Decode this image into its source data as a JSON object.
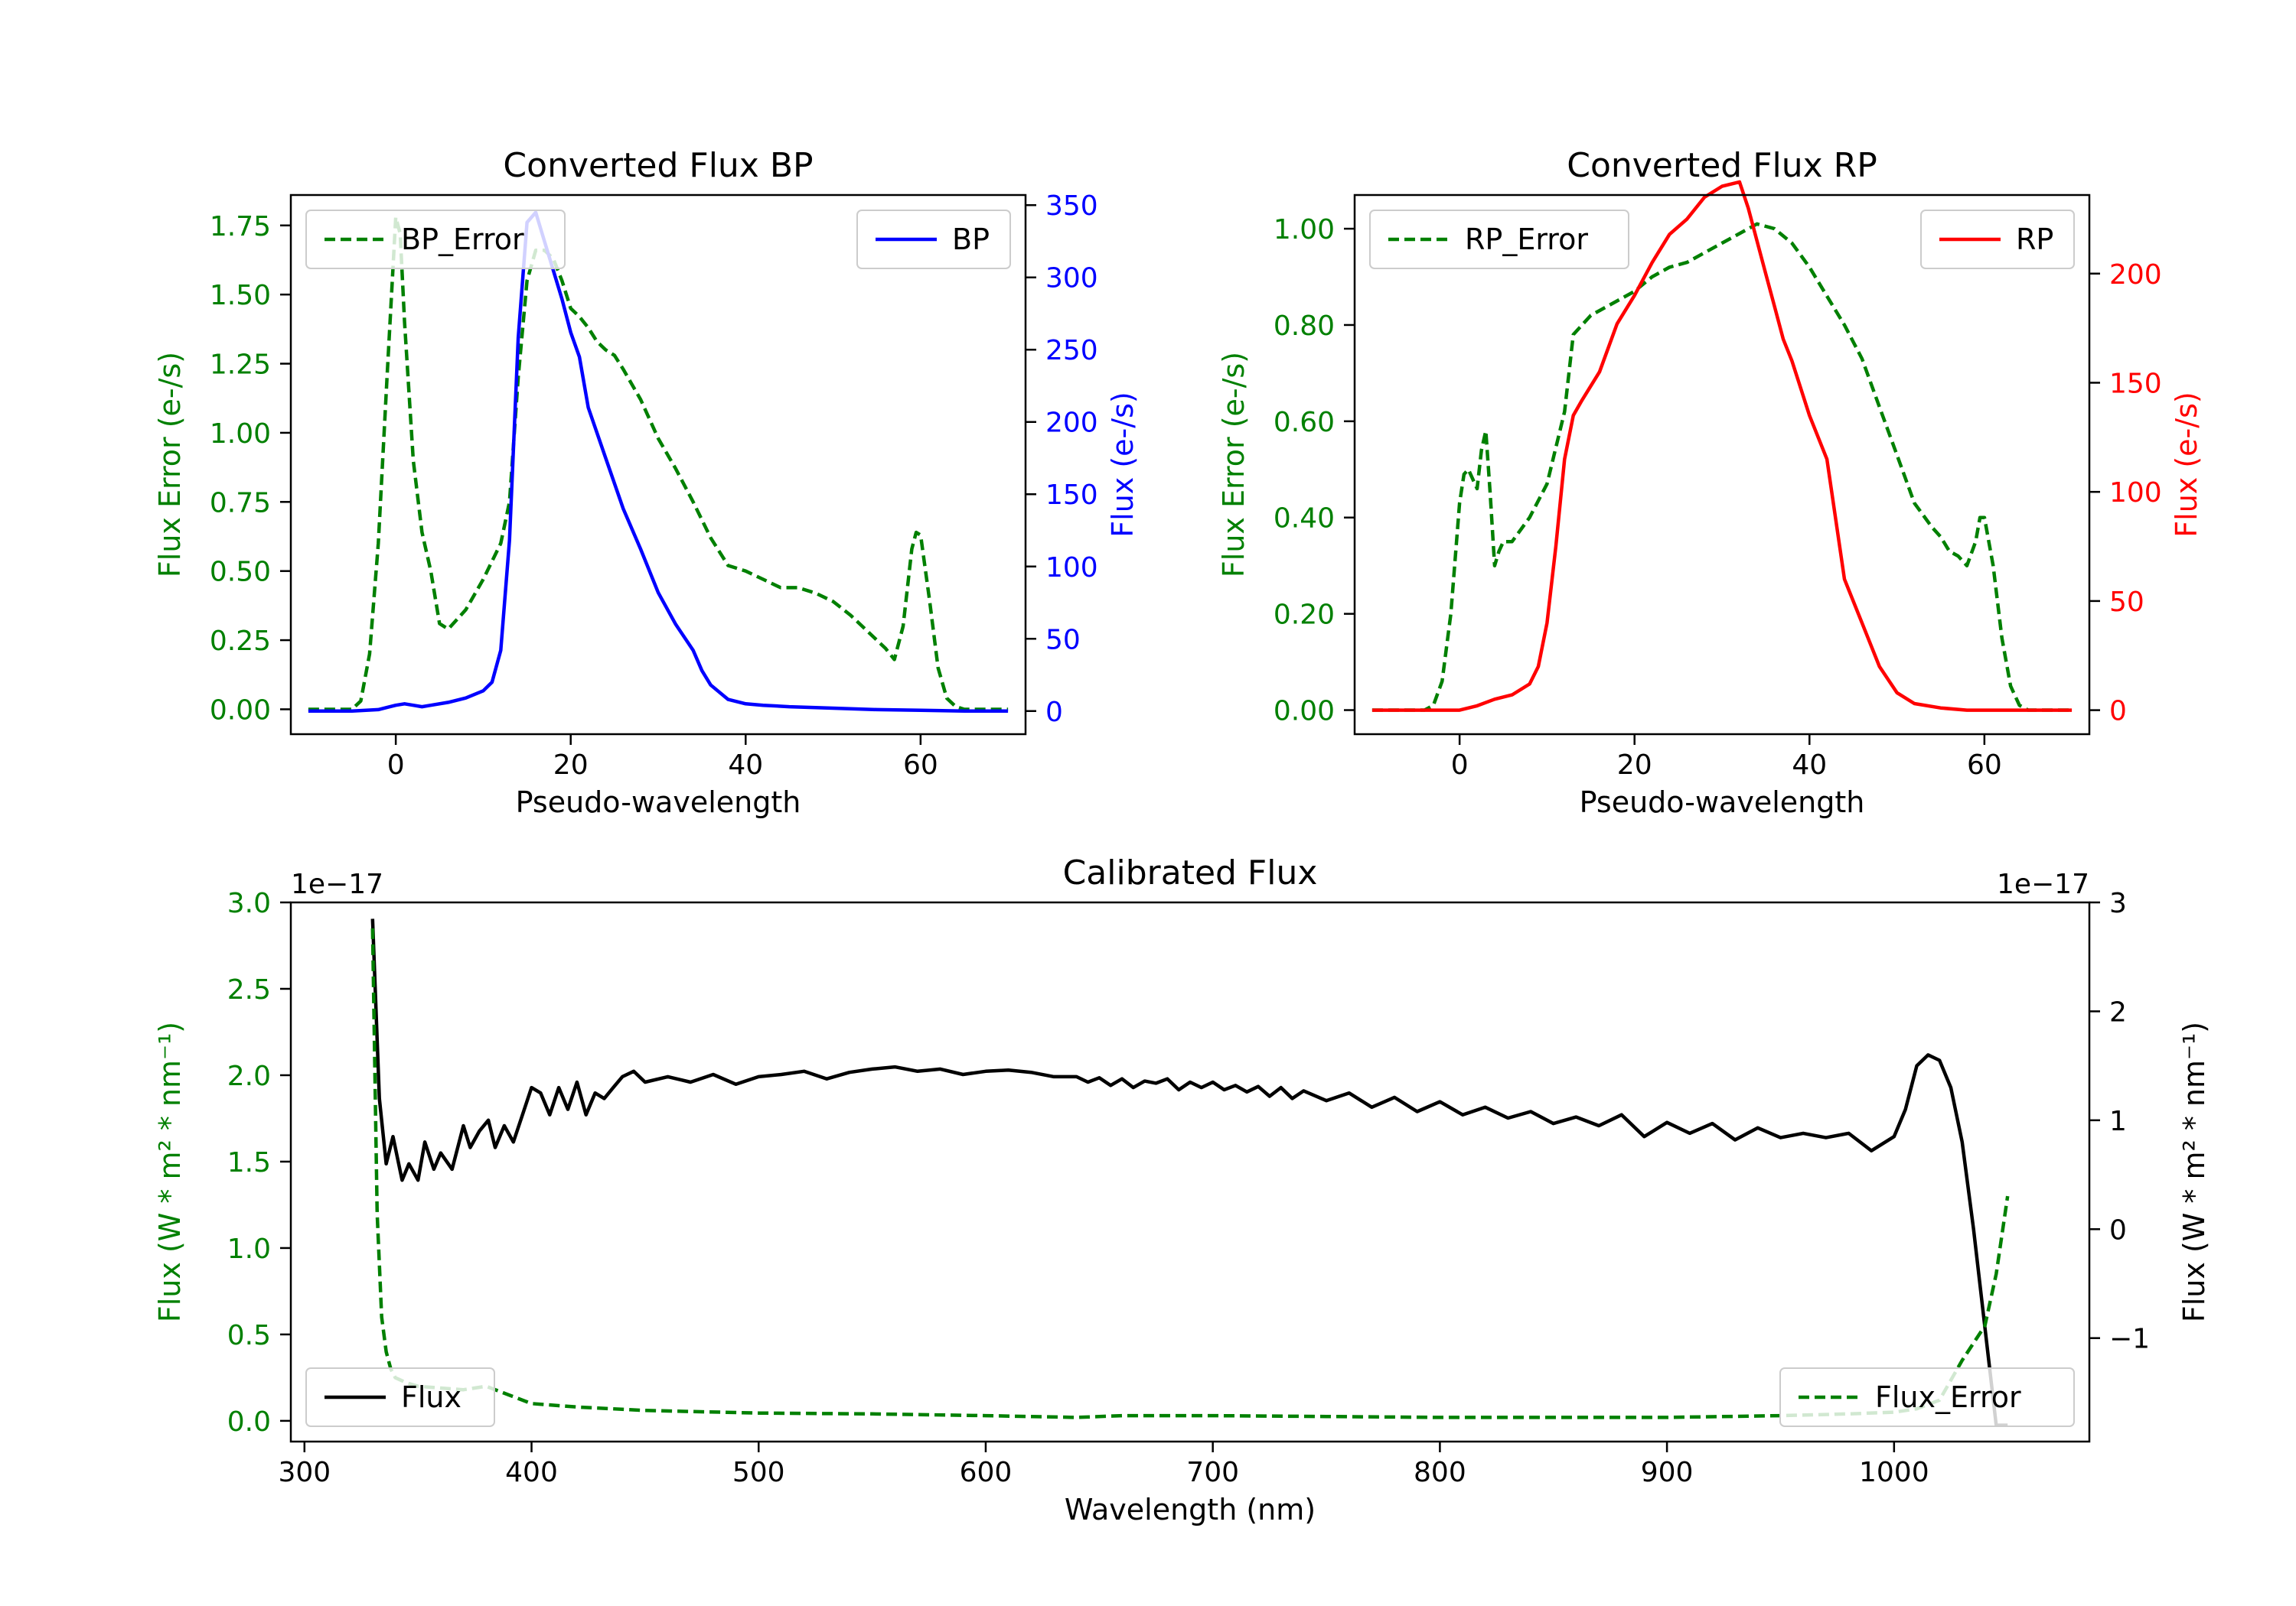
{
  "figure": {
    "colors": {
      "green": "#008000",
      "blue": "#0000ff",
      "red": "#ff0000",
      "black": "#000000"
    }
  },
  "chart_data": [
    {
      "type": "line",
      "title": "Converted Flux BP",
      "xlabel": "Pseudo-wavelength",
      "xlim": [
        -12,
        72
      ],
      "xticks": [
        0,
        20,
        40,
        60
      ],
      "y_left": {
        "label": "Flux Error (e-/s)",
        "lim": [
          -0.09,
          1.86
        ],
        "ticks": [
          0.0,
          0.25,
          0.5,
          0.75,
          1.0,
          1.25,
          1.5,
          1.75
        ],
        "color": "#008000"
      },
      "y_right": {
        "label": "Flux (e-/s)",
        "lim": [
          -16,
          357
        ],
        "ticks": [
          0,
          50,
          100,
          150,
          200,
          250,
          300,
          350
        ],
        "color": "#0000ff"
      },
      "series": [
        {
          "name": "BP_Error",
          "axis": "left",
          "style": "dashed",
          "color": "#008000",
          "legend_position": "upper left",
          "x": [
            -10,
            -5,
            -4,
            -3,
            -2,
            -1,
            0,
            0.5,
            1,
            2,
            3,
            4,
            5,
            6,
            8,
            10,
            12,
            13,
            14,
            15,
            16,
            17,
            18,
            19,
            20,
            21,
            22,
            23,
            24,
            25,
            26,
            28,
            30,
            32,
            34,
            36,
            38,
            40,
            42,
            44,
            46,
            48,
            50,
            52,
            54,
            56,
            57,
            58,
            59,
            59.5,
            60,
            61,
            62,
            63,
            64,
            65,
            70
          ],
          "y": [
            0,
            0,
            0.03,
            0.2,
            0.6,
            1.2,
            1.78,
            1.72,
            1.4,
            0.9,
            0.64,
            0.5,
            0.31,
            0.29,
            0.36,
            0.47,
            0.6,
            0.75,
            1.2,
            1.55,
            1.66,
            1.66,
            1.63,
            1.55,
            1.45,
            1.42,
            1.38,
            1.33,
            1.3,
            1.28,
            1.23,
            1.12,
            0.98,
            0.87,
            0.75,
            0.62,
            0.52,
            0.5,
            0.47,
            0.44,
            0.44,
            0.42,
            0.39,
            0.34,
            0.28,
            0.22,
            0.18,
            0.3,
            0.58,
            0.64,
            0.63,
            0.4,
            0.15,
            0.04,
            0.01,
            0,
            0
          ]
        },
        {
          "name": "BP",
          "axis": "right",
          "style": "solid",
          "color": "#0000ff",
          "legend_position": "upper right",
          "x": [
            -10,
            -5,
            -2,
            0,
            1,
            2,
            3,
            4,
            6,
            8,
            10,
            11,
            12,
            13,
            14,
            15,
            16,
            17,
            18,
            19,
            20,
            21,
            22,
            24,
            26,
            28,
            30,
            32,
            34,
            35,
            36,
            38,
            40,
            42,
            45,
            50,
            55,
            60,
            65,
            70
          ],
          "y": [
            0,
            0,
            1,
            4,
            5,
            4,
            3,
            4,
            6,
            9,
            14,
            20,
            42,
            118,
            258,
            338,
            345,
            325,
            305,
            285,
            262,
            245,
            210,
            175,
            140,
            112,
            82,
            60,
            42,
            28,
            18,
            8,
            5,
            4,
            3,
            2,
            1,
            0.5,
            0,
            0
          ]
        }
      ]
    },
    {
      "type": "line",
      "title": "Converted Flux RP",
      "xlabel": "Pseudo-wavelength",
      "xlim": [
        -12,
        72
      ],
      "xticks": [
        0,
        20,
        40,
        60
      ],
      "y_left": {
        "label": "Flux Error (e-/s)",
        "lim": [
          -0.05,
          1.07
        ],
        "ticks": [
          0.0,
          0.2,
          0.4,
          0.6,
          0.8,
          1.0
        ],
        "color": "#008000"
      },
      "y_right": {
        "label": "Flux (e-/s)",
        "lim": [
          -11,
          236
        ],
        "ticks": [
          0,
          50,
          100,
          150,
          200
        ],
        "color": "#ff0000"
      },
      "series": [
        {
          "name": "RP_Error",
          "axis": "left",
          "style": "dashed",
          "color": "#008000",
          "legend_position": "upper left",
          "x": [
            -10,
            -4,
            -3,
            -2,
            -1,
            0,
            0.5,
            1,
            2,
            2.5,
            3,
            3.5,
            4,
            4.5,
            5,
            6,
            8,
            10,
            12,
            13,
            14,
            15,
            16,
            18,
            20,
            22,
            24,
            26,
            28,
            30,
            32,
            34,
            36,
            38,
            40,
            42,
            44,
            46,
            48,
            50,
            52,
            54,
            55,
            56,
            57,
            58,
            59,
            59.5,
            60,
            61,
            62,
            63,
            64,
            65,
            70
          ],
          "y": [
            0,
            0,
            0.01,
            0.06,
            0.2,
            0.43,
            0.49,
            0.5,
            0.46,
            0.54,
            0.58,
            0.45,
            0.3,
            0.33,
            0.35,
            0.35,
            0.4,
            0.47,
            0.62,
            0.78,
            0.8,
            0.82,
            0.83,
            0.85,
            0.87,
            0.9,
            0.92,
            0.93,
            0.95,
            0.97,
            0.99,
            1.01,
            1.0,
            0.97,
            0.92,
            0.86,
            0.8,
            0.73,
            0.63,
            0.53,
            0.43,
            0.38,
            0.36,
            0.33,
            0.32,
            0.3,
            0.35,
            0.4,
            0.4,
            0.3,
            0.15,
            0.05,
            0.01,
            0,
            0
          ]
        },
        {
          "name": "RP",
          "axis": "right",
          "style": "solid",
          "color": "#ff0000",
          "legend_position": "upper right",
          "x": [
            -10,
            -5,
            -2,
            0,
            2,
            4,
            6,
            8,
            9,
            10,
            11,
            12,
            13,
            14,
            16,
            18,
            20,
            22,
            24,
            26,
            28,
            30,
            32,
            33,
            34,
            35,
            36,
            37,
            38,
            40,
            42,
            44,
            46,
            48,
            50,
            52,
            55,
            58,
            60,
            65,
            70
          ],
          "y": [
            0,
            0,
            0,
            0,
            2,
            5,
            7,
            12,
            20,
            40,
            75,
            115,
            135,
            142,
            155,
            177,
            190,
            205,
            218,
            225,
            235,
            240,
            242,
            230,
            215,
            200,
            185,
            170,
            160,
            135,
            115,
            60,
            40,
            20,
            8,
            3,
            1,
            0,
            0,
            0,
            0
          ]
        }
      ]
    },
    {
      "type": "line",
      "title": "Calibrated Flux",
      "xlabel": "Wavelength (nm)",
      "xlim": [
        294,
        1086
      ],
      "xticks": [
        300,
        400,
        500,
        600,
        700,
        800,
        900,
        1000
      ],
      "y_left": {
        "label": "Flux (W * m² * nm⁻¹)",
        "scale_label": "1e−17",
        "lim": [
          -0.12,
          3.0
        ],
        "ticks": [
          0.0,
          0.5,
          1.0,
          1.5,
          2.0,
          2.5,
          3.0
        ],
        "tick_labels": [
          "0.0",
          "0.5",
          "1.0",
          "1.5",
          "2.0",
          "2.5",
          "3.0"
        ],
        "color": "#008000"
      },
      "y_right": {
        "label": "Flux (W * m² * nm⁻¹)",
        "scale_label": "1e−17",
        "lim": [
          -1.95,
          3.0
        ],
        "ticks": [
          -1,
          0,
          1,
          2,
          3
        ],
        "tick_labels": [
          "−1",
          "0",
          "1",
          "2",
          "3"
        ],
        "color": "#000000"
      },
      "series": [
        {
          "name": "Flux",
          "axis": "right",
          "style": "solid",
          "color": "#000000",
          "legend_position": "lower left",
          "x": [
            330,
            333,
            336,
            339,
            343,
            346,
            350,
            353,
            357,
            360,
            365,
            370,
            373,
            377,
            381,
            384,
            388,
            392,
            396,
            400,
            404,
            408,
            412,
            416,
            420,
            424,
            428,
            432,
            436,
            440,
            445,
            450,
            460,
            470,
            480,
            490,
            500,
            510,
            520,
            530,
            540,
            550,
            560,
            570,
            580,
            590,
            600,
            610,
            620,
            630,
            640,
            645,
            650,
            655,
            660,
            665,
            670,
            675,
            680,
            685,
            690,
            695,
            700,
            705,
            710,
            715,
            720,
            725,
            730,
            735,
            740,
            750,
            760,
            770,
            780,
            790,
            800,
            810,
            820,
            830,
            840,
            850,
            860,
            870,
            880,
            890,
            900,
            910,
            920,
            930,
            940,
            950,
            960,
            970,
            980,
            990,
            1000,
            1005,
            1010,
            1015,
            1020,
            1025,
            1030,
            1035,
            1040,
            1045,
            1050
          ],
          "y": [
            2.85,
            1.2,
            0.6,
            0.85,
            0.45,
            0.6,
            0.45,
            0.8,
            0.55,
            0.7,
            0.55,
            0.95,
            0.75,
            0.9,
            1.0,
            0.75,
            0.95,
            0.8,
            1.05,
            1.3,
            1.25,
            1.05,
            1.3,
            1.1,
            1.35,
            1.05,
            1.25,
            1.2,
            1.3,
            1.4,
            1.45,
            1.35,
            1.4,
            1.35,
            1.42,
            1.33,
            1.4,
            1.42,
            1.45,
            1.38,
            1.44,
            1.47,
            1.49,
            1.45,
            1.47,
            1.42,
            1.45,
            1.46,
            1.44,
            1.4,
            1.4,
            1.35,
            1.39,
            1.32,
            1.38,
            1.3,
            1.36,
            1.34,
            1.38,
            1.28,
            1.35,
            1.3,
            1.35,
            1.28,
            1.32,
            1.26,
            1.31,
            1.22,
            1.3,
            1.2,
            1.27,
            1.18,
            1.25,
            1.12,
            1.21,
            1.08,
            1.17,
            1.05,
            1.12,
            1.02,
            1.08,
            0.97,
            1.03,
            0.95,
            1.05,
            0.85,
            0.98,
            0.88,
            0.97,
            0.82,
            0.93,
            0.84,
            0.88,
            0.84,
            0.88,
            0.72,
            0.85,
            1.1,
            1.5,
            1.6,
            1.55,
            1.3,
            0.8,
            0.0,
            -0.9,
            -1.8,
            -1.8
          ]
        },
        {
          "name": "Flux_Error",
          "axis": "left",
          "style": "dashed",
          "color": "#008000",
          "legend_position": "lower right",
          "x": [
            330,
            332,
            334,
            336,
            338,
            340,
            345,
            350,
            360,
            370,
            380,
            390,
            400,
            420,
            450,
            500,
            550,
            600,
            640,
            660,
            700,
            750,
            800,
            900,
            950,
            980,
            1000,
            1010,
            1020,
            1030,
            1040,
            1045,
            1050
          ],
          "y": [
            2.85,
            1.2,
            0.6,
            0.4,
            0.3,
            0.25,
            0.22,
            0.2,
            0.19,
            0.18,
            0.2,
            0.15,
            0.1,
            0.08,
            0.06,
            0.045,
            0.04,
            0.03,
            0.02,
            0.03,
            0.03,
            0.025,
            0.02,
            0.02,
            0.03,
            0.04,
            0.05,
            0.07,
            0.12,
            0.35,
            0.55,
            0.85,
            1.3
          ]
        }
      ]
    }
  ]
}
